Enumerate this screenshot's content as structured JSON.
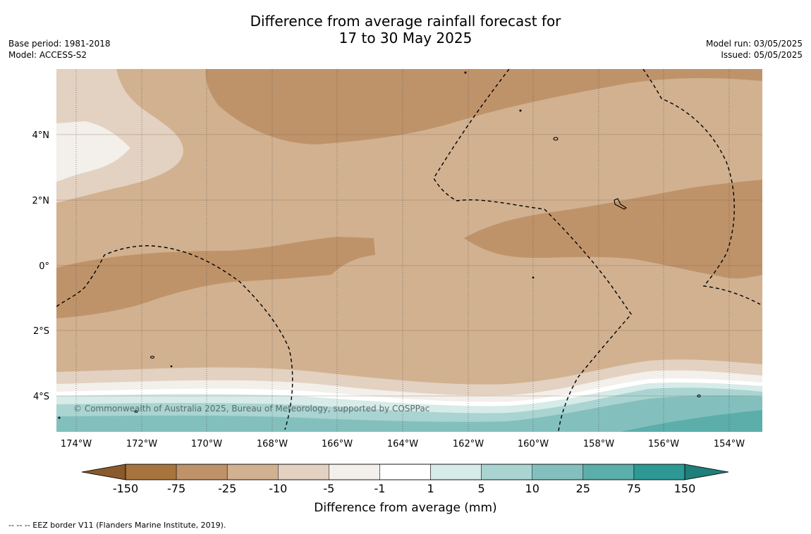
{
  "title_line1": "Difference from average rainfall forecast for",
  "title_line2": "17 to 30 May 2025",
  "meta_left": [
    "Base period: 1981-2018",
    "Model: ACCESS-S2"
  ],
  "meta_right": [
    "Model run: 03/05/2025",
    "Issued: 05/05/2025"
  ],
  "copyright": "© Commonwealth of Australia 2025, Bureau of Meteorology, supported by COSPPac",
  "footnote": "--  --  -- EEZ border V11 (Flanders Marine Institute, 2019).",
  "map": {
    "lon_ticks": [
      "174°W",
      "172°W",
      "170°W",
      "168°W",
      "166°W",
      "164°W",
      "162°W",
      "160°W",
      "158°W",
      "156°W",
      "154°W"
    ],
    "lat_ticks": [
      "4°N",
      "2°N",
      "0°",
      "2°S",
      "4°S"
    ]
  },
  "colorbar": {
    "title": "Difference from average (mm)",
    "labels": [
      "-150",
      "-75",
      "-25",
      "-10",
      "-5",
      "-1",
      "1",
      "5",
      "10",
      "25",
      "75",
      "150"
    ],
    "colors": [
      "#a8743d",
      "#bf936a",
      "#d1b190",
      "#e3d1c1",
      "#f3efea",
      "#ffffff",
      "#d7ebe8",
      "#a9d4d1",
      "#83c0bd",
      "#5caeab",
      "#2e9994"
    ],
    "under_color": "#8a5a2c",
    "over_color": "#1f7f7a"
  }
}
